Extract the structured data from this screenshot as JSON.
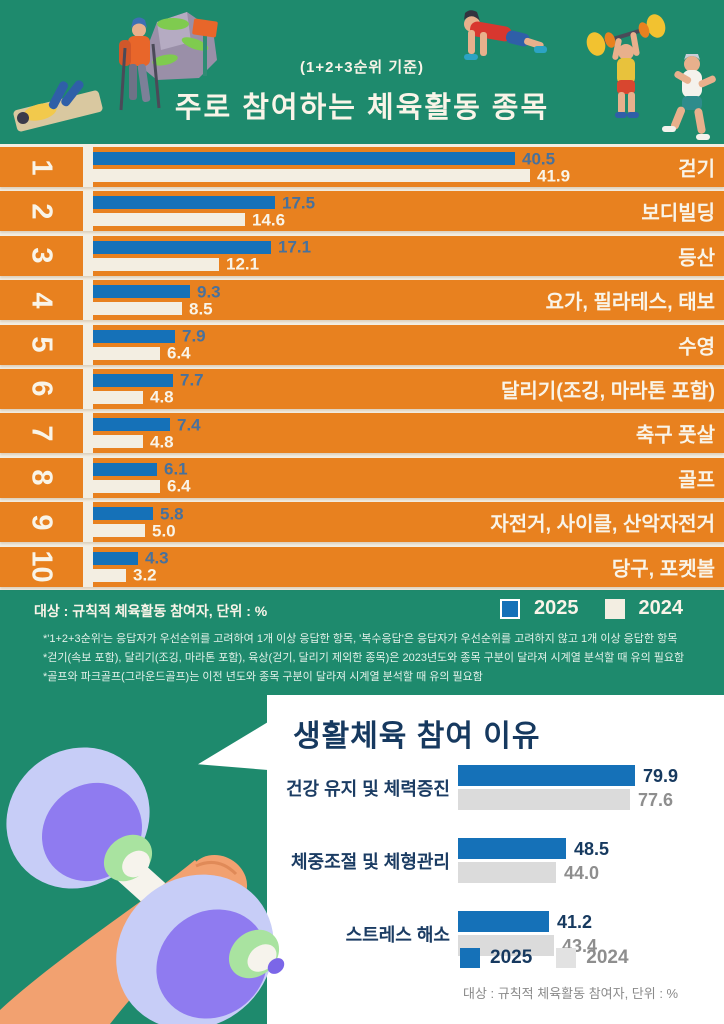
{
  "header": {
    "subtitle": "(1+2+3순위 기준)",
    "title": "주로 참여하는 체육활동 종목"
  },
  "ranking": {
    "rows": [
      {
        "rank": "1",
        "label": "걷기",
        "v2025": "40.5",
        "v2024": "41.9"
      },
      {
        "rank": "2",
        "label": "보디빌딩",
        "v2025": "17.5",
        "v2024": "14.6"
      },
      {
        "rank": "3",
        "label": "등산",
        "v2025": "17.1",
        "v2024": "12.1"
      },
      {
        "rank": "4",
        "label": "요가, 필라테스, 태보",
        "v2025": "9.3",
        "v2024": "8.5"
      },
      {
        "rank": "5",
        "label": "수영",
        "v2025": "7.9",
        "v2024": "6.4"
      },
      {
        "rank": "6",
        "label": "달리기(조깅, 마라톤 포함)",
        "v2025": "7.7",
        "v2024": "4.8"
      },
      {
        "rank": "7",
        "label": "축구 풋살",
        "v2025": "7.4",
        "v2024": "4.8"
      },
      {
        "rank": "8",
        "label": "골프",
        "v2025": "6.1",
        "v2024": "6.4"
      },
      {
        "rank": "9",
        "label": "자전거, 사이클, 산악자전거",
        "v2025": "5.8",
        "v2024": "5.0"
      },
      {
        "rank": "10",
        "label": "당구, 포켓볼",
        "v2025": "4.3",
        "v2024": "3.2"
      }
    ]
  },
  "meta": {
    "note": "대상 : 규칙적 체육활동 참여자, 단위 : %",
    "legend_2025": "2025",
    "legend_2024": "2024"
  },
  "footnotes": [
    "*'1+2+3순위'는 응답자가 우선순위를 고려하여 1개 이상 응답한 항목, '복수응답'은 응답자가 우선순위를 고려하지 않고 1개 이상 응답한 항목",
    "*걷기(속보 포함), 달리기(조깅, 마라톤 포함), 육상(걷기, 달리기 제외한 종목)은 2023년도와 종목 구분이 달라져 시계열 분석할 때 유의 필요함",
    "*골프와 파크골프(그라운드골프)는 이전 년도와 종목 구분이 달라져 시계열 분석할 때 유의 필요함"
  ],
  "bottom": {
    "title": "생활체육 참여 이유",
    "items": [
      {
        "label": "건강 유지 및 체력증진",
        "v2025": "79.9",
        "v2024": "77.6"
      },
      {
        "label": "체중조절 및 체형관리",
        "v2025": "48.5",
        "v2024": "44.0"
      },
      {
        "label": "스트레스 해소",
        "v2025": "41.2",
        "v2024": "43.4"
      }
    ],
    "legend_2025": "2025",
    "legend_2024": "2024",
    "note": "대상 : 규칙적 체육활동 참여자, 단위 : %"
  },
  "illustrations": [
    "yoga-illustration",
    "hiking-illustration",
    "pushup-illustration",
    "weightlifting-illustration",
    "running-illustration",
    "dumbbell-illustration"
  ],
  "colors": {
    "teal_background": "#1E8A6D",
    "row_orange": "#E8811F",
    "bar_2025_blue": "#1571B8",
    "bar_2024_cream": "#F3EEE2",
    "bar_2024_gray": "#DBDBDB",
    "title_navy": "#16395F",
    "value_steel_blue": "#48719C"
  },
  "chart_data": [
    {
      "type": "bar",
      "orientation": "horizontal",
      "title": "주로 참여하는 체육활동 종목",
      "subtitle": "(1+2+3순위 기준)",
      "categories": [
        "걷기",
        "보디빌딩",
        "등산",
        "요가, 필라테스, 태보",
        "수영",
        "달리기(조깅, 마라톤 포함)",
        "축구 풋살",
        "골프",
        "자전거, 사이클, 산악자전거",
        "당구, 포켓볼"
      ],
      "series": [
        {
          "name": "2025",
          "values": [
            40.5,
            17.5,
            17.1,
            9.3,
            7.9,
            7.7,
            7.4,
            6.1,
            5.8,
            4.3
          ]
        },
        {
          "name": "2024",
          "values": [
            41.9,
            14.6,
            12.1,
            8.5,
            6.4,
            4.8,
            4.8,
            6.4,
            5.0,
            3.2
          ]
        }
      ],
      "unit": "%",
      "note": "대상 : 규칙적 체육활동 참여자, 단위 : %",
      "xlim": [
        0,
        60
      ],
      "grid": false,
      "legend_position": "right-of-note"
    },
    {
      "type": "bar",
      "orientation": "horizontal",
      "title": "생활체육 참여 이유",
      "categories": [
        "건강 유지 및 체력증진",
        "체중조절 및 체형관리",
        "스트레스 해소"
      ],
      "series": [
        {
          "name": "2025",
          "values": [
            79.9,
            48.5,
            41.2
          ]
        },
        {
          "name": "2024",
          "values": [
            77.6,
            44.0,
            43.4
          ]
        }
      ],
      "unit": "%",
      "note": "대상 : 규칙적 체육활동 참여자, 단위 : %",
      "xlim": [
        0,
        100
      ],
      "grid": false,
      "legend_position": "bottom"
    }
  ]
}
